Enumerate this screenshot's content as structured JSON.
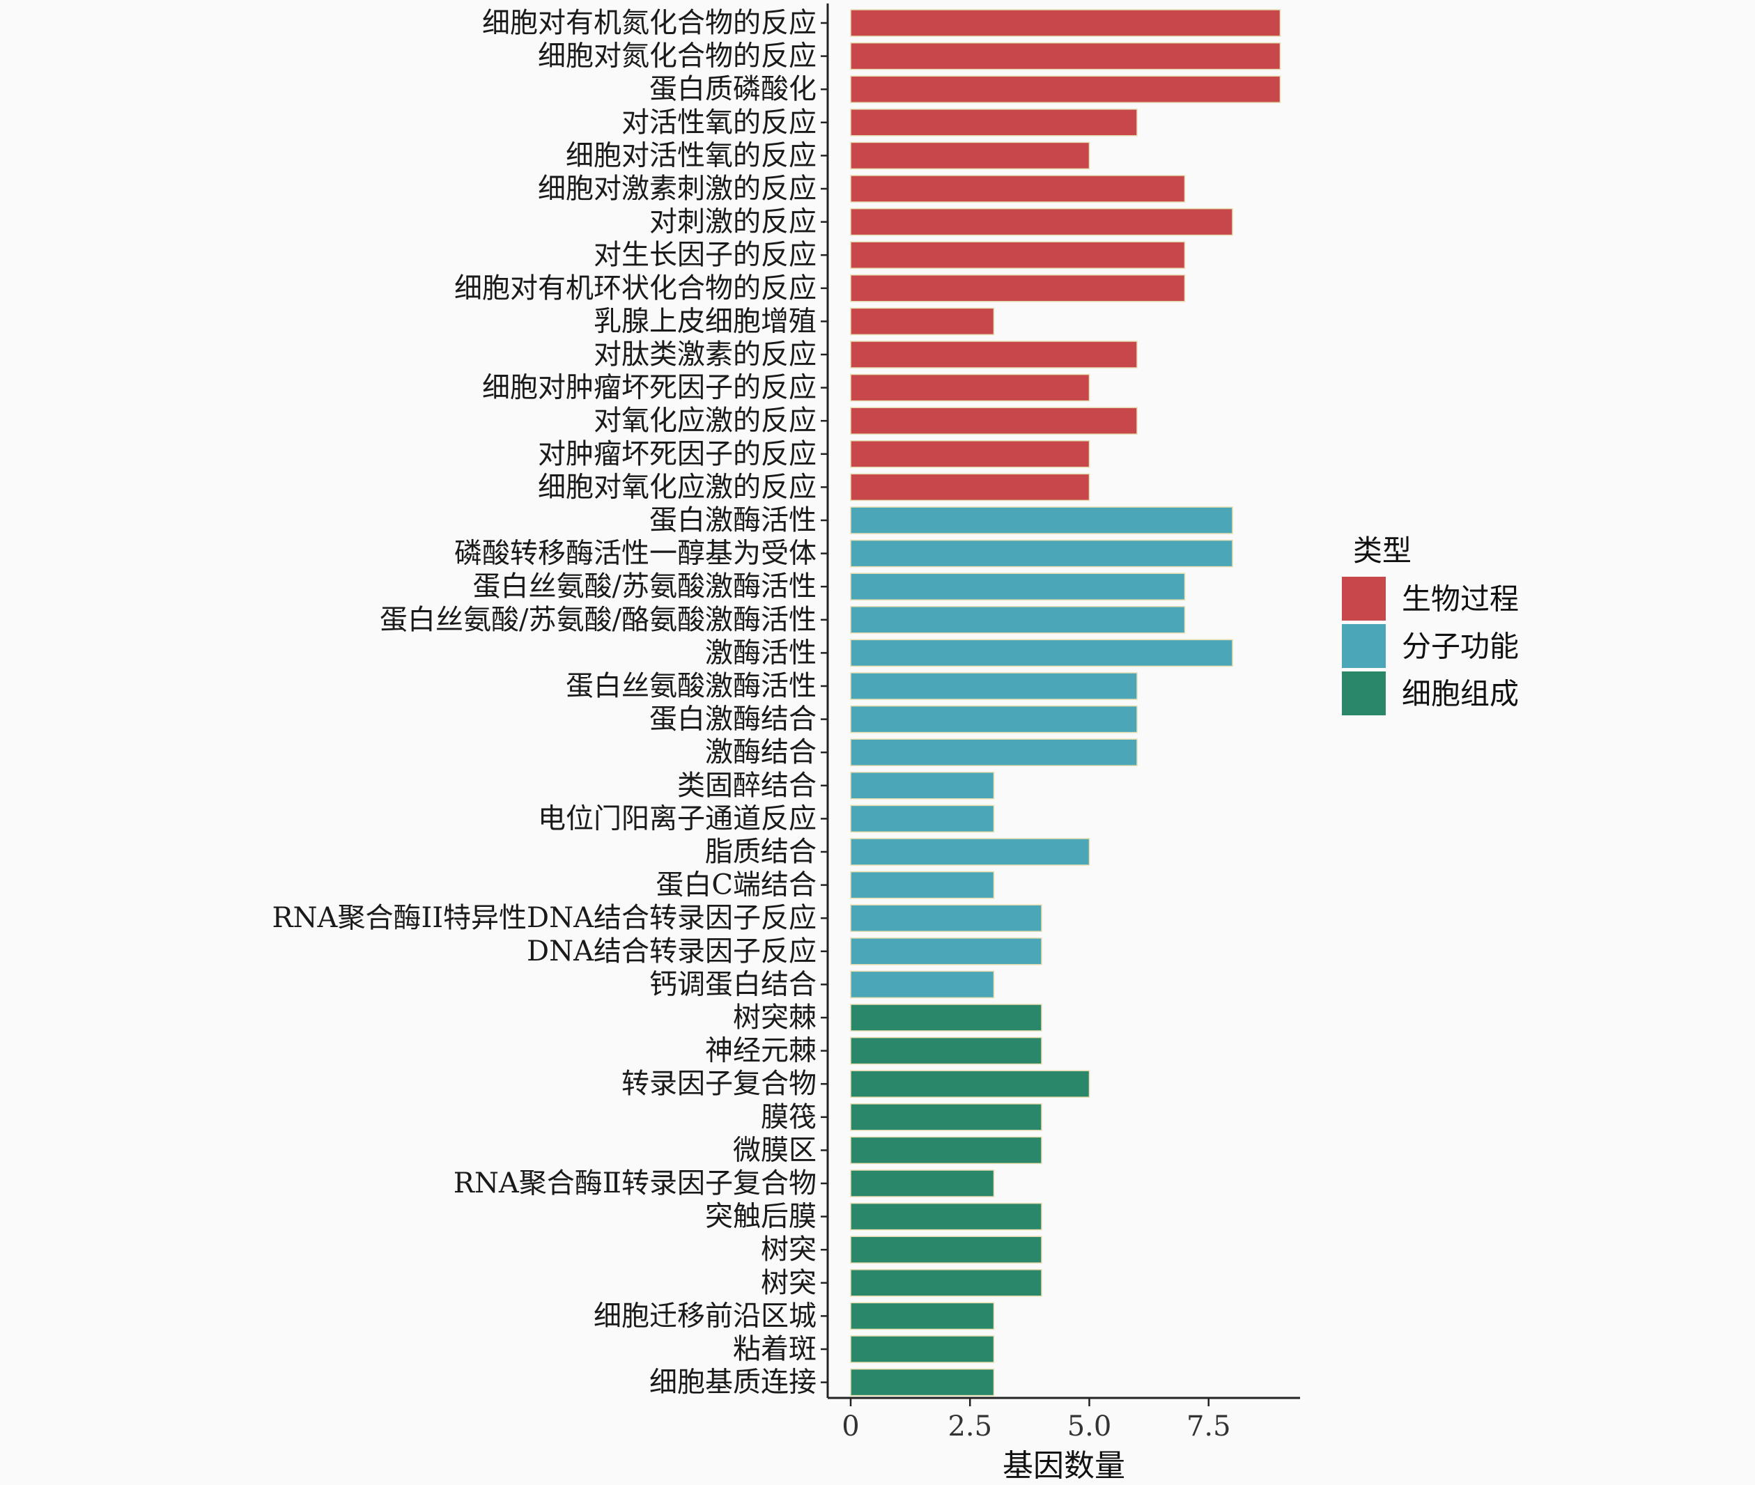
{
  "chart_data": {
    "type": "bar",
    "orientation": "horizontal",
    "xlabel": "基因数量",
    "ylabel": "",
    "xlim": [
      0,
      9.5
    ],
    "xticks": [
      "0",
      "2.5",
      "5.0",
      "7.5"
    ],
    "xtick_values": [
      0,
      2.5,
      5.0,
      7.5
    ],
    "grid": false,
    "legend": {
      "title": "类型",
      "placement": "right",
      "entries": [
        {
          "name": "生物过程",
          "color": "#c8474a"
        },
        {
          "name": "分子功能",
          "color": "#4ba7b7"
        },
        {
          "name": "细胞组成",
          "color": "#2a876a"
        }
      ]
    },
    "categories": [
      "细胞对有机氮化合物的反应",
      "细胞对氮化合物的反应",
      "蛋白质磷酸化",
      "对活性氧的反应",
      "细胞对活性氧的反应",
      "细胞对激素刺激的反应",
      "对刺激的反应",
      "对生长因子的反应",
      "细胞对有机环状化合物的反应",
      "乳腺上皮细胞增殖",
      "对肽类激素的反应",
      "细胞对肿瘤坏死因子的反应",
      "对氧化应激的反应",
      "对肿瘤坏死因子的反应",
      "细胞对氧化应激的反应",
      "蛋白激酶活性",
      "磷酸转移酶活性一醇基为受体",
      "蛋白丝氨酸/苏氨酸激酶活性",
      "蛋白丝氨酸/苏氨酸/酪氨酸激酶活性",
      "激酶活性",
      "蛋白丝氨酸激酶活性",
      "蛋白激酶结合",
      "激酶结合",
      "类固醉结合",
      "电位门阳离子通道反应",
      "脂质结合",
      "蛋白C端结合",
      "RNA聚合酶II特异性DNA结合转录因子反应",
      "DNA结合转录因子反应",
      "钙调蛋白结合",
      "树突棘",
      "神经元棘",
      "转录因子复合物",
      "膜筏",
      "微膜区",
      "RNA聚合酶Ⅱ转录因子复合物",
      "突触后膜",
      "树突",
      "树突",
      "细胞迁移前沿区城",
      "粘着斑",
      "细胞基质连接"
    ],
    "values": [
      9,
      9,
      9,
      6,
      5,
      7,
      8,
      7,
      7,
      3,
      6,
      5,
      6,
      5,
      5,
      8,
      8,
      7,
      7,
      8,
      6,
      6,
      6,
      3,
      3,
      5,
      3,
      4,
      4,
      3,
      4,
      4,
      5,
      4,
      4,
      3,
      4,
      4,
      4,
      3,
      3,
      3
    ],
    "groups": [
      0,
      0,
      0,
      0,
      0,
      0,
      0,
      0,
      0,
      0,
      0,
      0,
      0,
      0,
      0,
      1,
      1,
      1,
      1,
      1,
      1,
      1,
      1,
      1,
      1,
      1,
      1,
      1,
      1,
      1,
      2,
      2,
      2,
      2,
      2,
      2,
      2,
      2,
      2,
      2,
      2,
      2
    ]
  }
}
